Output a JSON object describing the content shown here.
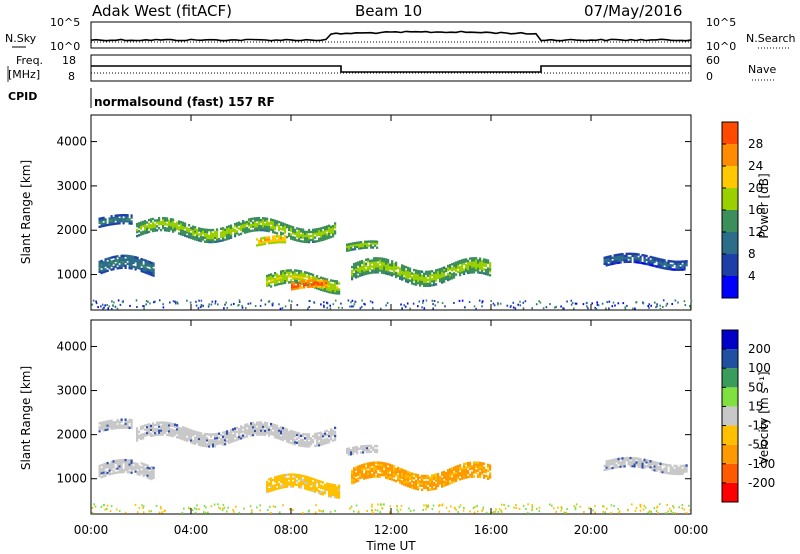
{
  "header": {
    "site": "Adak West (fitACF)",
    "beam": "Beam 10",
    "date": "07/May/2016"
  },
  "panels": {
    "nsky_label": "N.Sky",
    "nsearch_label": "N.Search",
    "freq_label_1": "Freq.",
    "freq_label_2": "[MHz]",
    "nave_label": "Nave",
    "cpid_label": "CPID",
    "cpid_text": "normalsound (fast) 157 RF",
    "noise_ticks_left": [
      "10^5",
      "10^0"
    ],
    "noise_ticks_right": [
      "10^5",
      "10^0"
    ],
    "freq_ticks": [
      "18",
      "8"
    ],
    "nave_ticks": [
      "60",
      "0"
    ]
  },
  "colors": {
    "power_scale": [
      "#0000ff",
      "#1f3fa8",
      "#2c6e8a",
      "#3c8f5a",
      "#9ad000",
      "#ffc800",
      "#ff8c00",
      "#ff4a00",
      "#e00000"
    ],
    "velocity_scale": [
      "#ff0000",
      "#ff5a00",
      "#ff9900",
      "#ffc000",
      "#c8c8c8",
      "#80e040",
      "#3a9c5a",
      "#2050a0",
      "#0000c8"
    ],
    "ground_scatter": "#c8c8c8"
  },
  "chart_data": [
    {
      "type": "heatmap",
      "name": "power",
      "xlabel": "Time UT",
      "ylabel": "Slant Range [km]",
      "x_ticks": [
        "00:00",
        "04:00",
        "08:00",
        "12:00",
        "16:00",
        "20:00",
        "00:00"
      ],
      "y_ticks": [
        1000,
        2000,
        3000,
        4000
      ],
      "ylim": [
        200,
        4600
      ],
      "xlim_hours": [
        0,
        24
      ],
      "colorbar": {
        "label": "Power [dB]",
        "ticks": [
          4,
          8,
          12,
          16,
          20,
          24,
          28
        ],
        "range": [
          0,
          32
        ]
      },
      "regions": [
        {
          "t0": 0.3,
          "t1": 1.6,
          "r_center": 2150,
          "r_half": 90,
          "level": 8
        },
        {
          "t0": 0.3,
          "t1": 2.5,
          "r_center": 1150,
          "r_half": 150,
          "level": 8
        },
        {
          "t0": 1.8,
          "t1": 9.8,
          "r_center": 2000,
          "r_half": 150,
          "level": 14
        },
        {
          "t0": 6.6,
          "t1": 7.8,
          "r_center": 1720,
          "r_half": 80,
          "level": 20
        },
        {
          "t0": 7.0,
          "t1": 9.9,
          "r_center": 820,
          "r_half": 140,
          "level": 16
        },
        {
          "t0": 8.0,
          "t1": 9.4,
          "r_center": 720,
          "r_half": 70,
          "level": 26
        },
        {
          "t0": 10.2,
          "t1": 11.4,
          "r_center": 1600,
          "r_half": 80,
          "level": 14
        },
        {
          "t0": 10.4,
          "t1": 16.0,
          "r_center": 1050,
          "r_half": 170,
          "level": 14
        },
        {
          "t0": 20.5,
          "t1": 23.8,
          "r_center": 1280,
          "r_half": 100,
          "level": 6
        }
      ]
    },
    {
      "type": "heatmap",
      "name": "velocity",
      "xlabel": "Time UT",
      "ylabel": "Slant Range [km]",
      "x_ticks": [
        "00:00",
        "04:00",
        "08:00",
        "12:00",
        "16:00",
        "20:00",
        "00:00"
      ],
      "y_ticks": [
        1000,
        2000,
        3000,
        4000
      ],
      "ylim": [
        200,
        4600
      ],
      "xlim_hours": [
        0,
        24
      ],
      "colorbar": {
        "label": "Velocity [m s⁻¹]",
        "ticks": [
          -200,
          -100,
          -50,
          -15,
          15,
          50,
          100,
          200
        ]
      },
      "regions": [
        {
          "t0": 0.3,
          "t1": 1.6,
          "r_center": 2150,
          "r_half": 90,
          "kind": "ground"
        },
        {
          "t0": 0.3,
          "t1": 2.5,
          "r_center": 1150,
          "r_half": 150,
          "kind": "ground"
        },
        {
          "t0": 1.8,
          "t1": 9.8,
          "r_center": 2000,
          "r_half": 150,
          "kind": "ground"
        },
        {
          "t0": 10.2,
          "t1": 11.4,
          "r_center": 1600,
          "r_half": 80,
          "kind": "ground"
        },
        {
          "t0": 7.0,
          "t1": 9.9,
          "r_center": 820,
          "r_half": 140,
          "kind": "ionospheric",
          "velocity": -30
        },
        {
          "t0": 10.4,
          "t1": 16.0,
          "r_center": 1050,
          "r_half": 170,
          "kind": "ionospheric",
          "velocity": -60
        },
        {
          "t0": 20.5,
          "t1": 23.8,
          "r_center": 1280,
          "r_half": 100,
          "kind": "ground"
        }
      ]
    }
  ]
}
